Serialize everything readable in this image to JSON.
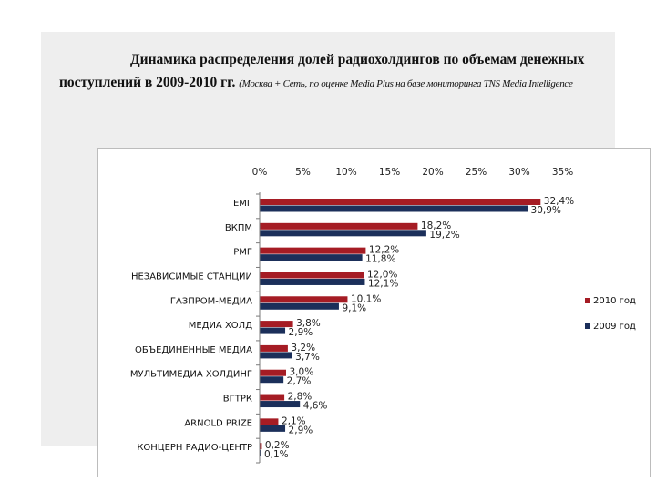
{
  "title": {
    "line1": "Динамика распределения долей радиохолдингов по объемам денежных",
    "line2": "поступлений в 2009-2010 гг.",
    "source": "(Москва + Сеть, по оценке Media Plus на базе мониторинга TNS Media Intelligence"
  },
  "colors": {
    "series_2010": "#a51c24",
    "series_2009": "#1b2f5a"
  },
  "chart_data": {
    "type": "bar",
    "orientation": "horizontal",
    "title": "",
    "xlabel": "",
    "ylabel": "",
    "xlim": [
      0,
      35
    ],
    "ticks": [
      "0%",
      "5%",
      "10%",
      "15%",
      "20%",
      "25%",
      "30%",
      "35%"
    ],
    "tick_values": [
      0,
      5,
      10,
      15,
      20,
      25,
      30,
      35
    ],
    "grid": false,
    "legend_position": "right",
    "categories": [
      "ЕМГ",
      "ВКПМ",
      "РМГ",
      "НЕЗАВИСИМЫЕ СТАНЦИИ",
      "ГАЗПРОМ-МЕДИА",
      "МЕДИА ХОЛД",
      "ОБЪЕДИНЕННЫЕ МЕДИА",
      "МУЛЬТИМЕДИА ХОЛДИНГ",
      "ВГТРК",
      "ARNOLD PRIZE",
      "КОНЦЕРН РАДИО-ЦЕНТР"
    ],
    "series": [
      {
        "name": "2010 год",
        "values": [
          32.4,
          18.2,
          12.2,
          12.0,
          10.1,
          3.8,
          3.2,
          3.0,
          2.8,
          2.1,
          0.2
        ],
        "labels": [
          "32,4%",
          "18,2%",
          "12,2%",
          "12,0%",
          "10,1%",
          "3,8%",
          "3,2%",
          "3,0%",
          "2,8%",
          "2,1%",
          "0,2%"
        ]
      },
      {
        "name": "2009 год",
        "values": [
          30.9,
          19.2,
          11.8,
          12.1,
          9.1,
          2.9,
          3.7,
          2.7,
          4.6,
          2.9,
          0.1
        ],
        "labels": [
          "30,9%",
          "19,2%",
          "11,8%",
          "12,1%",
          "9,1%",
          "2,9%",
          "3,7%",
          "2,7%",
          "4,6%",
          "2,9%",
          "0,1%"
        ]
      }
    ]
  }
}
